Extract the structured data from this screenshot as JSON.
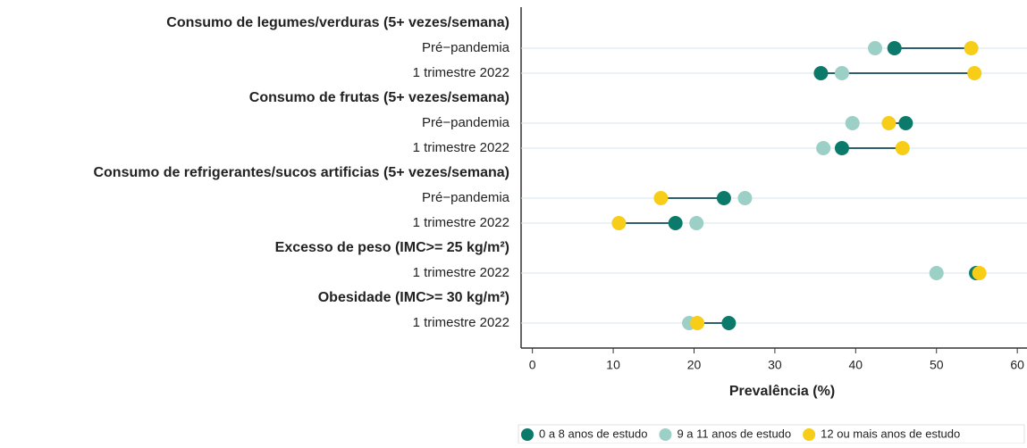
{
  "chart_data": {
    "type": "dumbbell",
    "categories": [
      "Consumo de legumes/verduras (5+ vezes/semana)",
      "Pré−pandemia",
      "1 trimestre 2022",
      "Consumo de frutas (5+ vezes/semana)",
      "Pré−pandemia",
      "1 trimestre 2022",
      "Consumo de refrigerantes/sucos artificias (5+ vezes/semana)",
      "Pré−pandemia",
      "1 trimestre 2022",
      "Excesso de peso (IMC>= 25 kg/m²)",
      "1 trimestre 2022",
      "Obesidade (IMC>= 30 kg/m²)",
      "1 trimestre 2022"
    ],
    "series": [
      {
        "name": "0 a 8 anos de estudo",
        "color": "#0b7a6a",
        "values": [
          null,
          44.8,
          35.7,
          null,
          46.2,
          38.3,
          null,
          23.7,
          17.7,
          null,
          54.9,
          null,
          24.3
        ]
      },
      {
        "name": "9 a 11 anos de estudo",
        "color": "#9ccfc6",
        "values": [
          null,
          42.4,
          38.3,
          null,
          39.6,
          36.0,
          null,
          26.3,
          20.3,
          null,
          50.0,
          null,
          19.4
        ]
      },
      {
        "name": "12 ou mais anos de estudo",
        "color": "#f7cd17",
        "values": [
          null,
          54.3,
          54.7,
          null,
          44.1,
          45.8,
          null,
          15.9,
          10.7,
          null,
          55.3,
          null,
          20.4
        ]
      }
    ],
    "xlabel": "Prevalência (%)",
    "xlim": [
      -1.4,
      61.2
    ],
    "xticks": [
      0,
      10,
      20,
      30,
      40,
      50,
      60
    ],
    "grid": true,
    "legend": "bottom-right"
  }
}
